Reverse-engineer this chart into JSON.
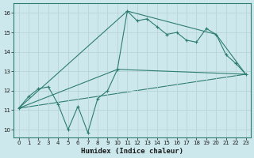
{
  "title": "",
  "xlabel": "Humidex (Indice chaleur)",
  "ylabel": "",
  "bg_color": "#cce8ec",
  "grid_color": "#b8d4d8",
  "line_color": "#2e7d6e",
  "xlim": [
    -0.5,
    23.5
  ],
  "ylim": [
    9.6,
    16.5
  ],
  "xticks": [
    0,
    1,
    2,
    3,
    4,
    5,
    6,
    7,
    8,
    9,
    10,
    11,
    12,
    13,
    14,
    15,
    16,
    17,
    18,
    19,
    20,
    21,
    22,
    23
  ],
  "yticks": [
    10,
    11,
    12,
    13,
    14,
    15,
    16
  ],
  "series0_x": [
    0,
    1,
    2,
    3,
    4,
    5,
    6,
    7,
    8,
    9,
    10,
    11,
    12,
    13,
    14,
    15,
    16,
    17,
    18,
    19,
    20,
    21,
    22,
    23
  ],
  "series0_y": [
    11.1,
    11.7,
    12.1,
    12.2,
    11.3,
    10.0,
    11.2,
    9.85,
    11.6,
    12.0,
    13.1,
    16.1,
    15.6,
    15.7,
    15.3,
    14.9,
    15.0,
    14.6,
    14.5,
    15.2,
    14.9,
    13.85,
    13.4,
    12.85
  ],
  "series1_x": [
    0,
    10,
    23
  ],
  "series1_y": [
    11.1,
    13.1,
    12.85
  ],
  "series2_x": [
    0,
    11,
    20,
    23
  ],
  "series2_y": [
    11.1,
    16.1,
    14.9,
    12.85
  ],
  "series3_x": [
    0,
    23
  ],
  "series3_y": [
    11.1,
    12.85
  ]
}
